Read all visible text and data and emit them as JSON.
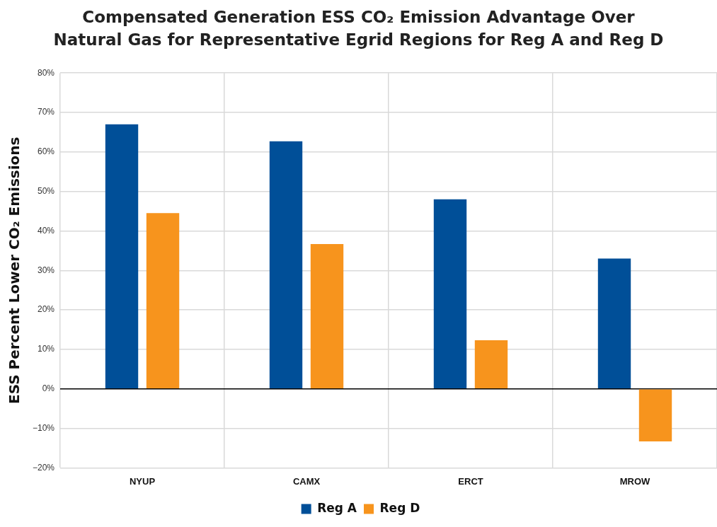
{
  "chart_data": {
    "type": "bar",
    "title": "Compensated Generation ESS CO₂ Emission Advantage Over Natural Gas for Representative Egrid Regions for Reg A and Reg D",
    "ylabel": "ESS Percent Lower CO₂ Emissions",
    "categories": [
      "NYUP",
      "CAMX",
      "ERCT",
      "MROW"
    ],
    "series": [
      {
        "name": "Reg A",
        "color": "#004f98",
        "values": [
          67,
          62.7,
          48,
          33
        ]
      },
      {
        "name": "Reg D",
        "color": "#f7941d",
        "values": [
          44.5,
          36.7,
          12.3,
          -13.3
        ]
      }
    ],
    "ylim": [
      -20,
      80
    ],
    "yticks": [
      {
        "value": -20,
        "label": "−20%"
      },
      {
        "value": -10,
        "label": "−10%"
      },
      {
        "value": 0,
        "label": "0%"
      },
      {
        "value": 10,
        "label": "10%"
      },
      {
        "value": 20,
        "label": "20%"
      },
      {
        "value": 30,
        "label": "30%"
      },
      {
        "value": 40,
        "label": "40%"
      },
      {
        "value": 50,
        "label": "50%"
      },
      {
        "value": 60,
        "label": "60%"
      },
      {
        "value": 70,
        "label": "70%"
      },
      {
        "value": 80,
        "label": "80%"
      }
    ],
    "grid": true,
    "legend": "bottom"
  }
}
